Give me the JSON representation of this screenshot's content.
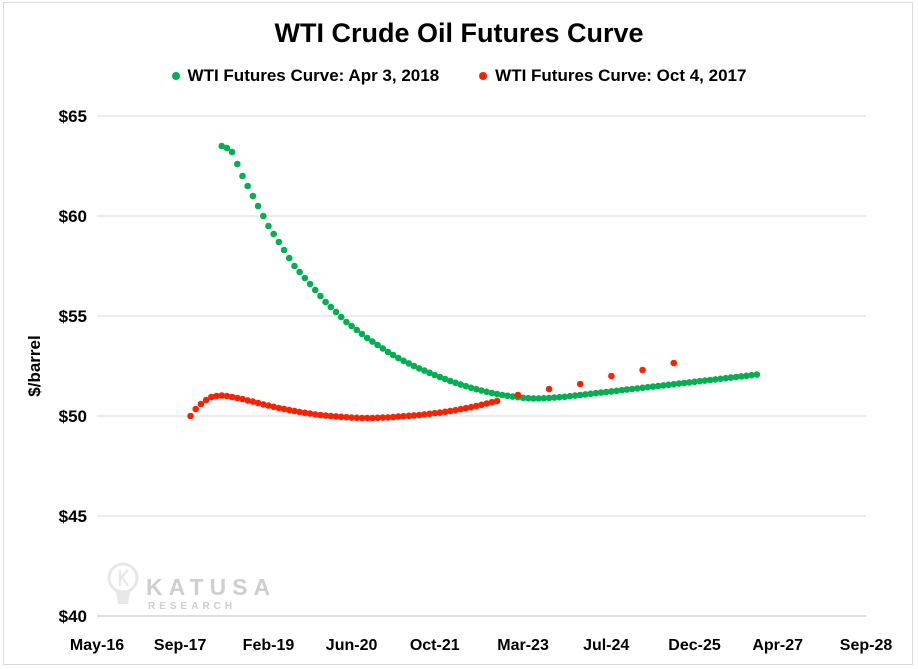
{
  "chart_data": {
    "type": "scatter",
    "title": "WTI Crude Oil Futures Curve",
    "ylabel": "$/barrel",
    "xlabel": "",
    "ylim": [
      40,
      65
    ],
    "yticks": [
      40,
      45,
      50,
      55,
      60,
      65
    ],
    "ytick_labels": [
      "$40",
      "$45",
      "$50",
      "$55",
      "$60",
      "$65"
    ],
    "xlim": [
      "2016-05",
      "2028-09"
    ],
    "xticks": [
      "2016-05",
      "2017-09",
      "2019-02",
      "2020-06",
      "2021-10",
      "2023-03",
      "2024-07",
      "2025-12",
      "2027-04",
      "2028-09"
    ],
    "xtick_labels": [
      "May-16",
      "Sep-17",
      "Feb-19",
      "Jun-20",
      "Oct-21",
      "Mar-23",
      "Jul-24",
      "Dec-25",
      "Apr-27",
      "Sep-28"
    ],
    "grid": true,
    "legend_position": "top",
    "watermark": "KATUSA RESEARCH",
    "series": [
      {
        "name": "WTI Futures Curve: Apr 3, 2018",
        "color": "#00b050",
        "points": [
          [
            "2018-05",
            63.5
          ],
          [
            "2018-06",
            63.4
          ],
          [
            "2018-07",
            63.2
          ],
          [
            "2018-08",
            62.6
          ],
          [
            "2018-09",
            62.0
          ],
          [
            "2018-10",
            61.5
          ],
          [
            "2018-11",
            61.0
          ],
          [
            "2018-12",
            60.5
          ],
          [
            "2019-01",
            60.0
          ],
          [
            "2019-02",
            59.5
          ],
          [
            "2019-03",
            59.1
          ],
          [
            "2019-04",
            58.7
          ],
          [
            "2019-05",
            58.3
          ],
          [
            "2019-06",
            57.9
          ],
          [
            "2019-07",
            57.5
          ],
          [
            "2019-08",
            57.2
          ],
          [
            "2019-09",
            56.9
          ],
          [
            "2019-10",
            56.6
          ],
          [
            "2019-11",
            56.3
          ],
          [
            "2019-12",
            56.0
          ],
          [
            "2020-01",
            55.7
          ],
          [
            "2020-02",
            55.45
          ],
          [
            "2020-03",
            55.2
          ],
          [
            "2020-04",
            54.95
          ],
          [
            "2020-05",
            54.7
          ],
          [
            "2020-06",
            54.5
          ],
          [
            "2020-07",
            54.3
          ],
          [
            "2020-08",
            54.1
          ],
          [
            "2020-09",
            53.9
          ],
          [
            "2020-10",
            53.72
          ],
          [
            "2020-11",
            53.55
          ],
          [
            "2020-12",
            53.38
          ],
          [
            "2021-01",
            53.2
          ],
          [
            "2021-02",
            53.05
          ],
          [
            "2021-03",
            52.9
          ],
          [
            "2021-04",
            52.76
          ],
          [
            "2021-05",
            52.63
          ],
          [
            "2021-06",
            52.5
          ],
          [
            "2021-07",
            52.38
          ],
          [
            "2021-08",
            52.27
          ],
          [
            "2021-09",
            52.16
          ],
          [
            "2021-10",
            52.05
          ],
          [
            "2021-11",
            51.95
          ],
          [
            "2021-12",
            51.85
          ],
          [
            "2022-01",
            51.75
          ],
          [
            "2022-02",
            51.66
          ],
          [
            "2022-03",
            51.57
          ],
          [
            "2022-04",
            51.49
          ],
          [
            "2022-05",
            51.41
          ],
          [
            "2022-06",
            51.34
          ],
          [
            "2022-07",
            51.27
          ],
          [
            "2022-08",
            51.21
          ],
          [
            "2022-09",
            51.15
          ],
          [
            "2022-10",
            51.1
          ],
          [
            "2022-11",
            51.05
          ],
          [
            "2022-12",
            51.01
          ],
          [
            "2023-01",
            50.97
          ],
          [
            "2023-02",
            50.94
          ],
          [
            "2023-03",
            50.91
          ],
          [
            "2023-04",
            50.89
          ],
          [
            "2023-05",
            50.88
          ],
          [
            "2023-06",
            50.88
          ],
          [
            "2023-07",
            50.89
          ],
          [
            "2023-08",
            50.9
          ],
          [
            "2023-09",
            50.92
          ],
          [
            "2023-10",
            50.94
          ],
          [
            "2023-11",
            50.96
          ],
          [
            "2023-12",
            50.99
          ],
          [
            "2024-01",
            51.02
          ],
          [
            "2024-02",
            51.05
          ],
          [
            "2024-03",
            51.08
          ],
          [
            "2024-04",
            51.11
          ],
          [
            "2024-05",
            51.14
          ],
          [
            "2024-06",
            51.17
          ],
          [
            "2024-07",
            51.2
          ],
          [
            "2024-08",
            51.23
          ],
          [
            "2024-09",
            51.26
          ],
          [
            "2024-10",
            51.29
          ],
          [
            "2024-11",
            51.32
          ],
          [
            "2024-12",
            51.35
          ],
          [
            "2025-01",
            51.38
          ],
          [
            "2025-02",
            51.41
          ],
          [
            "2025-03",
            51.44
          ],
          [
            "2025-04",
            51.47
          ],
          [
            "2025-05",
            51.5
          ],
          [
            "2025-06",
            51.53
          ],
          [
            "2025-07",
            51.56
          ],
          [
            "2025-08",
            51.59
          ],
          [
            "2025-09",
            51.62
          ],
          [
            "2025-10",
            51.65
          ],
          [
            "2025-11",
            51.68
          ],
          [
            "2025-12",
            51.71
          ],
          [
            "2026-01",
            51.74
          ],
          [
            "2026-02",
            51.77
          ],
          [
            "2026-03",
            51.8
          ],
          [
            "2026-04",
            51.83
          ],
          [
            "2026-05",
            51.86
          ],
          [
            "2026-06",
            51.89
          ],
          [
            "2026-07",
            51.92
          ],
          [
            "2026-08",
            51.95
          ],
          [
            "2026-09",
            51.98
          ],
          [
            "2026-10",
            52.01
          ],
          [
            "2026-11",
            52.04
          ],
          [
            "2026-12",
            52.07
          ]
        ]
      },
      {
        "name": "WTI Futures Curve: Oct 4, 2017",
        "color": "#ff2000",
        "points": [
          [
            "2017-11",
            50.0
          ],
          [
            "2017-12",
            50.35
          ],
          [
            "2018-01",
            50.6
          ],
          [
            "2018-02",
            50.8
          ],
          [
            "2018-03",
            50.95
          ],
          [
            "2018-04",
            51.0
          ],
          [
            "2018-05",
            51.02
          ],
          [
            "2018-06",
            51.0
          ],
          [
            "2018-07",
            50.95
          ],
          [
            "2018-08",
            50.9
          ],
          [
            "2018-09",
            50.85
          ],
          [
            "2018-10",
            50.78
          ],
          [
            "2018-11",
            50.72
          ],
          [
            "2018-12",
            50.65
          ],
          [
            "2019-01",
            50.58
          ],
          [
            "2019-02",
            50.52
          ],
          [
            "2019-03",
            50.46
          ],
          [
            "2019-04",
            50.4
          ],
          [
            "2019-05",
            50.35
          ],
          [
            "2019-06",
            50.3
          ],
          [
            "2019-07",
            50.25
          ],
          [
            "2019-08",
            50.2
          ],
          [
            "2019-09",
            50.16
          ],
          [
            "2019-10",
            50.12
          ],
          [
            "2019-11",
            50.08
          ],
          [
            "2019-12",
            50.05
          ],
          [
            "2020-01",
            50.02
          ],
          [
            "2020-02",
            50.0
          ],
          [
            "2020-03",
            49.98
          ],
          [
            "2020-04",
            49.96
          ],
          [
            "2020-05",
            49.94
          ],
          [
            "2020-06",
            49.92
          ],
          [
            "2020-07",
            49.91
          ],
          [
            "2020-08",
            49.9
          ],
          [
            "2020-09",
            49.9
          ],
          [
            "2020-10",
            49.9
          ],
          [
            "2020-11",
            49.91
          ],
          [
            "2020-12",
            49.92
          ],
          [
            "2021-01",
            49.93
          ],
          [
            "2021-02",
            49.95
          ],
          [
            "2021-03",
            49.97
          ],
          [
            "2021-04",
            49.99
          ],
          [
            "2021-05",
            50.01
          ],
          [
            "2021-06",
            50.03
          ],
          [
            "2021-07",
            50.05
          ],
          [
            "2021-08",
            50.08
          ],
          [
            "2021-09",
            50.11
          ],
          [
            "2021-10",
            50.14
          ],
          [
            "2021-11",
            50.17
          ],
          [
            "2021-12",
            50.21
          ],
          [
            "2022-01",
            50.25
          ],
          [
            "2022-02",
            50.29
          ],
          [
            "2022-03",
            50.34
          ],
          [
            "2022-04",
            50.39
          ],
          [
            "2022-05",
            50.44
          ],
          [
            "2022-06",
            50.5
          ],
          [
            "2022-07",
            50.56
          ],
          [
            "2022-08",
            50.62
          ],
          [
            "2022-09",
            50.69
          ],
          [
            "2022-10",
            50.75
          ],
          [
            "2023-02",
            51.05
          ],
          [
            "2023-08",
            51.35
          ],
          [
            "2024-02",
            51.6
          ],
          [
            "2024-08",
            52.0
          ],
          [
            "2025-02",
            52.3
          ],
          [
            "2025-08",
            52.65
          ]
        ]
      }
    ]
  }
}
